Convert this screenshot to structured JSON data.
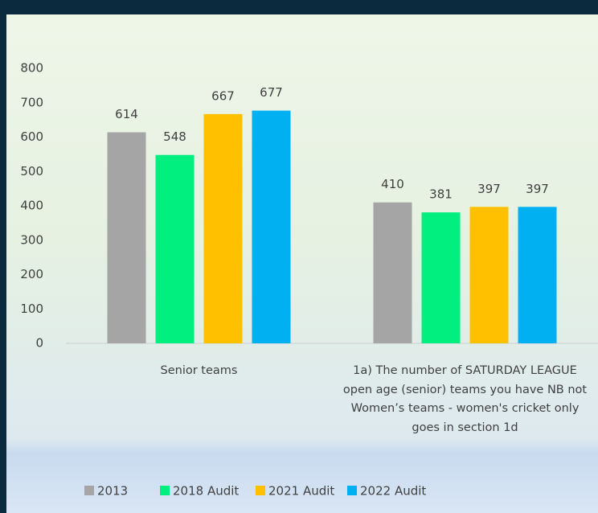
{
  "chart_data": {
    "type": "bar",
    "categories": [
      "Senior teams",
      "1a) The number of SATURDAY LEAGUE open age (senior) teams you have NB not Women’s teams - women's cricket only goes in section 1d"
    ],
    "series": [
      {
        "name": "2013",
        "color": "#a5a5a5",
        "values": [
          614,
          410
        ]
      },
      {
        "name": "2018 Audit",
        "color": "#00ef7f",
        "values": [
          548,
          381
        ]
      },
      {
        "name": "2021 Audit",
        "color": "#ffc000",
        "values": [
          667,
          397
        ]
      },
      {
        "name": "2022 Audit",
        "color": "#00b0f0",
        "values": [
          677,
          397
        ]
      }
    ],
    "ylim": [
      0,
      800
    ],
    "yticks": [
      0,
      100,
      200,
      300,
      400,
      500,
      600,
      700,
      800
    ],
    "grid": false,
    "legend": "bottom",
    "data_labels": true
  }
}
